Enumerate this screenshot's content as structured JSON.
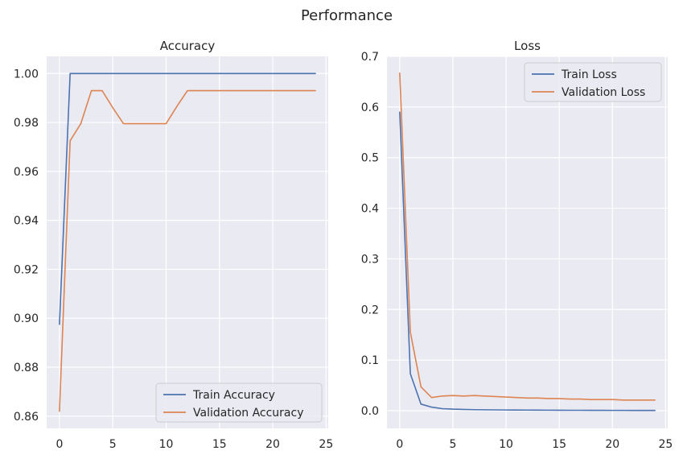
{
  "figure": {
    "title": "Performance"
  },
  "chart_data": [
    {
      "type": "line",
      "title": "Accuracy",
      "xlabel": "",
      "ylabel": "",
      "xlim": [
        -1.2,
        25.2
      ],
      "ylim": [
        0.855,
        1.007
      ],
      "xticks": [
        0,
        5,
        10,
        15,
        20,
        25
      ],
      "yticks": [
        0.86,
        0.88,
        0.9,
        0.92,
        0.94,
        0.96,
        0.98,
        1.0
      ],
      "ytick_decimals": 2,
      "grid": true,
      "legend": "lower-right",
      "x": [
        0,
        1,
        2,
        3,
        4,
        5,
        6,
        7,
        8,
        9,
        10,
        11,
        12,
        13,
        14,
        15,
        16,
        17,
        18,
        19,
        20,
        21,
        22,
        23,
        24
      ],
      "series": [
        {
          "name": "Train Accuracy",
          "color": "#4c72b0",
          "values": [
            0.8975,
            1.0,
            1.0,
            1.0,
            1.0,
            1.0,
            1.0,
            1.0,
            1.0,
            1.0,
            1.0,
            1.0,
            1.0,
            1.0,
            1.0,
            1.0,
            1.0,
            1.0,
            1.0,
            1.0,
            1.0,
            1.0,
            1.0,
            1.0,
            1.0
          ]
        },
        {
          "name": "Validation Accuracy",
          "color": "#dd8452",
          "values": [
            0.862,
            0.9725,
            0.9795,
            0.993,
            0.993,
            0.986,
            0.9795,
            0.9795,
            0.9795,
            0.9795,
            0.9795,
            0.9865,
            0.993,
            0.993,
            0.993,
            0.993,
            0.993,
            0.993,
            0.993,
            0.993,
            0.993,
            0.993,
            0.993,
            0.993,
            0.993
          ]
        }
      ]
    },
    {
      "type": "line",
      "title": "Loss",
      "xlabel": "",
      "ylabel": "",
      "xlim": [
        -1.2,
        25.2
      ],
      "ylim": [
        -0.035,
        0.7
      ],
      "xticks": [
        0,
        5,
        10,
        15,
        20,
        25
      ],
      "yticks": [
        0.0,
        0.1,
        0.2,
        0.3,
        0.4,
        0.5,
        0.6,
        0.7
      ],
      "ytick_decimals": 1,
      "grid": true,
      "legend": "upper-right",
      "x": [
        0,
        1,
        2,
        3,
        4,
        5,
        6,
        7,
        8,
        9,
        10,
        11,
        12,
        13,
        14,
        15,
        16,
        17,
        18,
        19,
        20,
        21,
        22,
        23,
        24
      ],
      "series": [
        {
          "name": "Train Loss",
          "color": "#4c72b0",
          "values": [
            0.59,
            0.073,
            0.013,
            0.007,
            0.004,
            0.003,
            0.0025,
            0.002,
            0.0018,
            0.0016,
            0.0014,
            0.0013,
            0.0012,
            0.0011,
            0.001,
            0.0009,
            0.0008,
            0.0008,
            0.0007,
            0.0007,
            0.0006,
            0.0006,
            0.0005,
            0.0005,
            0.0005
          ]
        },
        {
          "name": "Validation Loss",
          "color": "#dd8452",
          "values": [
            0.667,
            0.155,
            0.047,
            0.026,
            0.029,
            0.03,
            0.029,
            0.03,
            0.029,
            0.028,
            0.027,
            0.026,
            0.025,
            0.025,
            0.024,
            0.024,
            0.023,
            0.023,
            0.022,
            0.022,
            0.022,
            0.021,
            0.021,
            0.021,
            0.021
          ]
        }
      ]
    }
  ]
}
